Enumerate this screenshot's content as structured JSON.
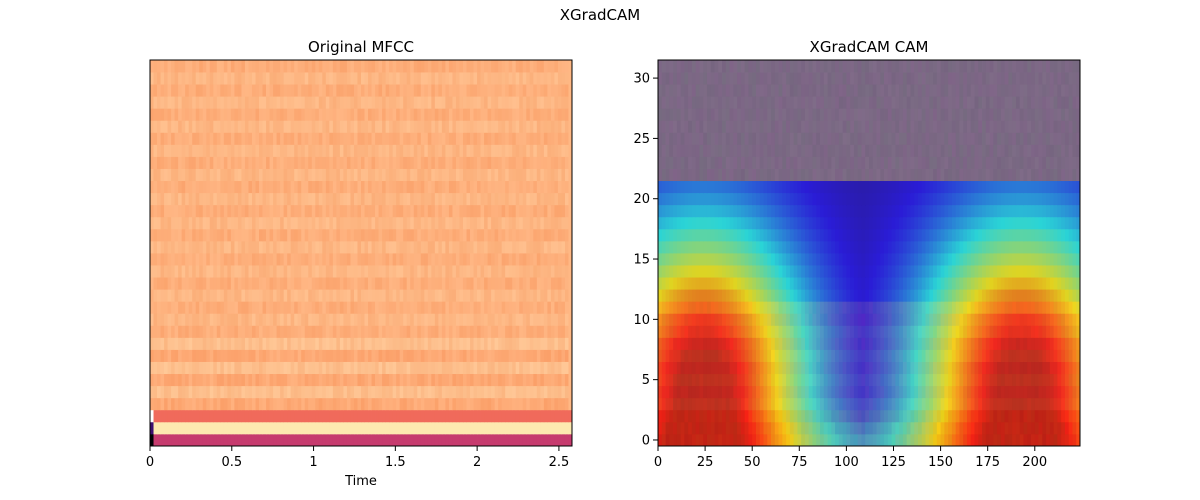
{
  "figure": {
    "suptitle": "XGradCAM"
  },
  "chart_data": [
    {
      "type": "heatmap",
      "title": "Original MFCC",
      "xlabel": "Time",
      "ylabel": "",
      "colormap": "magma",
      "xlim": [
        0,
        2.58
      ],
      "ylim": [
        0,
        32
      ],
      "xticks": [
        0,
        0.5,
        1,
        1.5,
        2,
        2.5
      ],
      "xtick_labels": [
        "0",
        "0.5",
        "1",
        "1.5",
        "2",
        "2.5"
      ],
      "yticks": [],
      "notes_colors": {
        "dominant": "#fdb17d",
        "low_band": "#f06a5b",
        "band_bright": "#fde9b0",
        "bottom_row": "#c63b6e",
        "dark_edge": "#000004"
      }
    },
    {
      "type": "heatmap",
      "title": "XGradCAM CAM",
      "xlabel": "",
      "ylabel": "",
      "colormap": "jet-overlay",
      "xlim": [
        0,
        224
      ],
      "ylim": [
        0,
        31.5
      ],
      "xticks": [
        0,
        25,
        50,
        75,
        100,
        125,
        150,
        175,
        200
      ],
      "xtick_labels": [
        "0",
        "25",
        "50",
        "75",
        "100",
        "125",
        "150",
        "175",
        "200"
      ],
      "yticks": [
        0,
        5,
        10,
        15,
        20,
        25,
        30
      ],
      "ytick_labels": [
        "0",
        "5",
        "10",
        "15",
        "20",
        "25",
        "30"
      ],
      "activation_peaks": [
        {
          "x": 24,
          "y": 5
        },
        {
          "x": 193,
          "y": 5
        }
      ]
    }
  ]
}
